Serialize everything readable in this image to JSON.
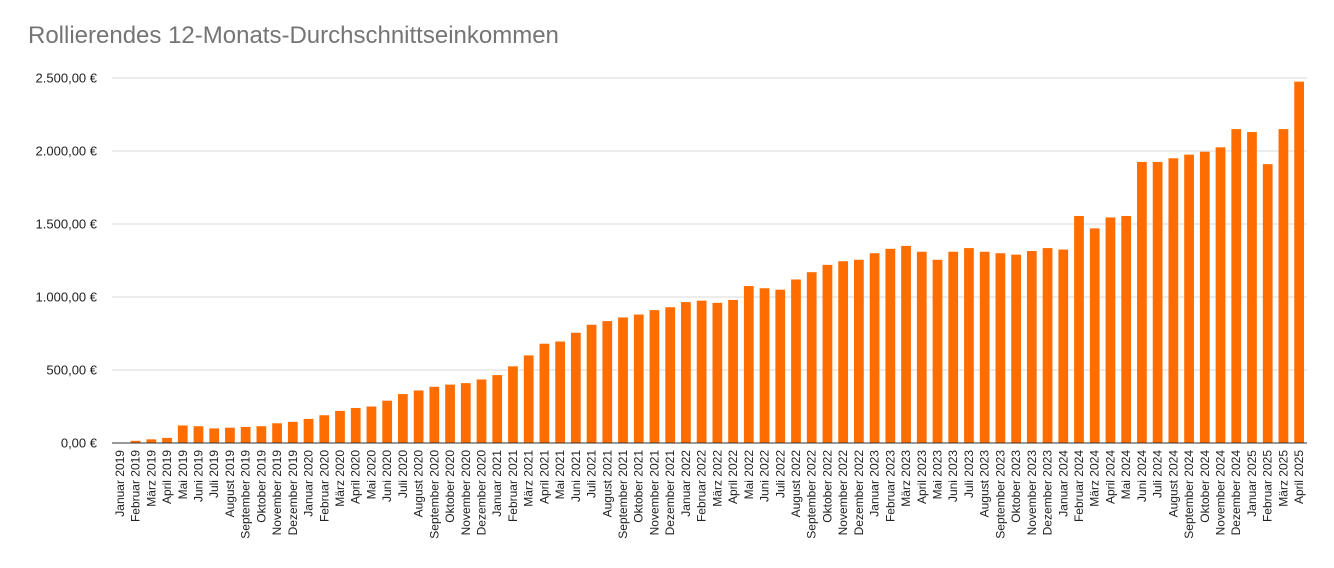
{
  "chart_data": {
    "type": "bar",
    "title": "Rollierendes 12-Monats-Durchschnittseinkommen",
    "xlabel": "",
    "ylabel": "",
    "ylim": [
      0,
      2500
    ],
    "yticks": [
      "0,00 €",
      "500,00 €",
      "1.000,00 €",
      "1.500,00 €",
      "2.000,00 €",
      "2.500,00 €"
    ],
    "grid": true,
    "legend": "none",
    "bar_color": "#ff6d01",
    "categories": [
      "Januar 2019",
      "Februar 2019",
      "März 2019",
      "April 2019",
      "Mai 2019",
      "Juni 2019",
      "Juli 2019",
      "August 2019",
      "September 2019",
      "Oktober 2019",
      "November 2019",
      "Dezember 2019",
      "Januar 2020",
      "Februar 2020",
      "März 2020",
      "April 2020",
      "Mai 2020",
      "Juni 2020",
      "Juli 2020",
      "August 2020",
      "September 2020",
      "Oktober 2020",
      "November 2020",
      "Dezember 2020",
      "Januar 2021",
      "Februar 2021",
      "März 2021",
      "April 2021",
      "Mai 2021",
      "Juni 2021",
      "Juli 2021",
      "August 2021",
      "September 2021",
      "Oktober 2021",
      "November 2021",
      "Dezember 2021",
      "Januar 2022",
      "Februar 2022",
      "März 2022",
      "April 2022",
      "Mai 2022",
      "Juni 2022",
      "Juli 2022",
      "August 2022",
      "September 2022",
      "Oktober 2022",
      "November 2022",
      "Dezember 2022",
      "Januar 2023",
      "Februar 2023",
      "März 2023",
      "April 2023",
      "Mai 2023",
      "Juni 2023",
      "Juli 2023",
      "August 2023",
      "September 2023",
      "Oktober 2023",
      "November 2023",
      "Dezember 2023",
      "Januar 2024",
      "Februar 2024",
      "März 2024",
      "April 2024",
      "Mai 2024",
      "Juni 2024",
      "Juli 2024",
      "August 2024",
      "September 2024",
      "Oktober 2024",
      "November 2024",
      "Dezember 2024",
      "Januar 2025",
      "Februar 2025",
      "März 2025",
      "April 2025"
    ],
    "values": [
      0,
      15,
      25,
      35,
      120,
      115,
      100,
      105,
      110,
      115,
      135,
      145,
      165,
      190,
      220,
      240,
      250,
      290,
      335,
      360,
      385,
      400,
      410,
      435,
      465,
      525,
      600,
      680,
      695,
      755,
      810,
      835,
      860,
      880,
      910,
      930,
      965,
      975,
      960,
      980,
      1075,
      1060,
      1050,
      1120,
      1170,
      1220,
      1245,
      1255,
      1300,
      1330,
      1350,
      1310,
      1255,
      1310,
      1335,
      1310,
      1300,
      1290,
      1315,
      1335,
      1325,
      1555,
      1470,
      1545,
      1555,
      1925,
      1925,
      1950,
      1975,
      1995,
      2025,
      2150,
      2130,
      1910,
      2150,
      2475
    ]
  }
}
